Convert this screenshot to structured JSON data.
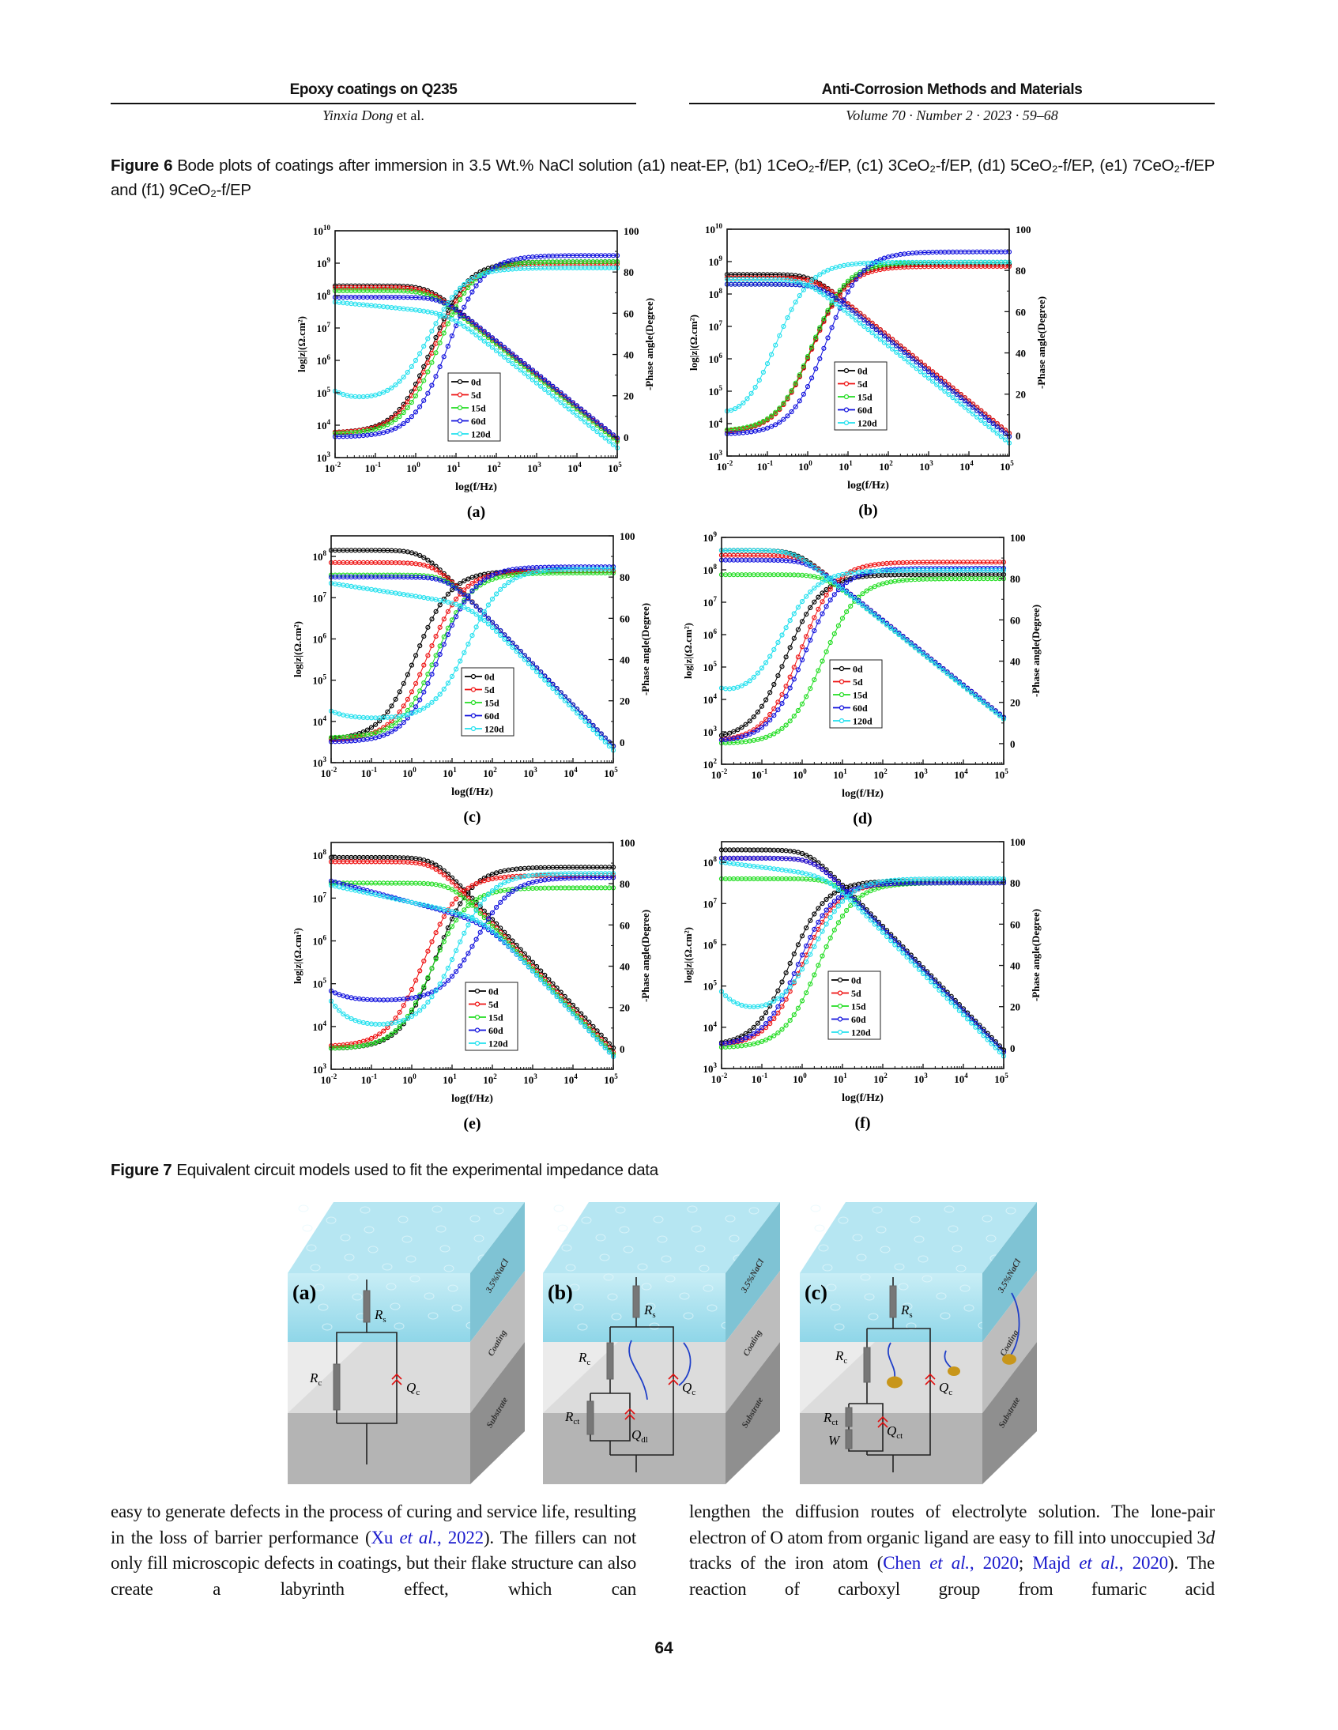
{
  "header": {
    "left_title": "Epoxy coatings on Q235",
    "left_author": "Yinxia Dong",
    "left_author_suffix": " et al.",
    "right_title": "Anti-Corrosion Methods and Materials",
    "right_sub": "Volume 70 · Number 2 · 2023 · 59–68"
  },
  "figure6": {
    "label": "Figure 6",
    "caption": "Bode plots of coatings after immersion in 3.5 Wt.% NaCl solution (a1) neat-EP, (b1) 1CeO₂-f/EP, (c1) 3CeO₂-f/EP, (d1) 5CeO₂-f/EP, (e1) 7CeO₂-f/EP and (f1) 9CeO₂-f/EP"
  },
  "chart_data": [
    {
      "panel": "(a)",
      "type": "line",
      "title": "",
      "xlabel": "log(f/Hz)",
      "ylabel": "log|z|(Ω.cm²)",
      "y2label": "-Phase angle(Degree)",
      "tick_base": "10",
      "x_log_range": [
        -2,
        5
      ],
      "y_log_range": [
        3,
        10
      ],
      "y2lim": [
        -10,
        100
      ],
      "x_ticks": [
        -2,
        -1,
        0,
        1,
        2,
        3,
        4,
        5
      ],
      "y_ticks": [
        3,
        4,
        5,
        6,
        7,
        8,
        9,
        10
      ],
      "y2_ticks": [
        0,
        20,
        40,
        60,
        80,
        100
      ],
      "legend": "center",
      "grid": false,
      "series": [
        {
          "name": "0d",
          "color": "#000000",
          "modulus": {
            "low_freq_log_z": 8.3,
            "low_freq_slope": 0,
            "log_z_at_1e5Hz": 3.6
          },
          "phase": {
            "at_0_01Hz": 2,
            "min": 2,
            "plateau": 85,
            "mid_log_f": 0.4
          }
        },
        {
          "name": "5d",
          "color": "#ee1111",
          "modulus": {
            "low_freq_log_z": 8.25,
            "low_freq_slope": 0,
            "log_z_at_1e5Hz": 3.55
          },
          "phase": {
            "at_0_01Hz": 2,
            "min": 2,
            "plateau": 84,
            "mid_log_f": 0.45
          }
        },
        {
          "name": "15d",
          "color": "#22dd22",
          "modulus": {
            "low_freq_log_z": 8.15,
            "low_freq_slope": 0,
            "log_z_at_1e5Hz": 3.5
          },
          "phase": {
            "at_0_01Hz": 1.5,
            "min": 1.5,
            "plateau": 85,
            "mid_log_f": 0.55
          }
        },
        {
          "name": "60d",
          "color": "#1010dd",
          "modulus": {
            "low_freq_log_z": 7.95,
            "low_freq_slope": 0,
            "log_z_at_1e5Hz": 3.6
          },
          "phase": {
            "at_0_01Hz": 0,
            "min": 0,
            "plateau": 88,
            "mid_log_f": 0.8
          }
        },
        {
          "name": "120d",
          "color": "#22e0ee",
          "modulus": {
            "low_freq_log_z": 7.8,
            "low_freq_slope": -0.12,
            "log_z_at_1e5Hz": 3.3
          },
          "phase": {
            "at_0_01Hz": 22,
            "min": 17,
            "plateau": 82,
            "mid_log_f": 0.35
          }
        }
      ]
    },
    {
      "panel": "(b)",
      "type": "line",
      "title": "",
      "xlabel": "log(f/Hz)",
      "ylabel": "log|z|(Ω.cm²)",
      "y2label": "-Phase angle(Degree)",
      "tick_base": "10",
      "x_log_range": [
        -2,
        5
      ],
      "y_log_range": [
        3,
        10
      ],
      "y2lim": [
        -10,
        100
      ],
      "x_ticks": [
        -2,
        -1,
        0,
        1,
        2,
        3,
        4,
        5
      ],
      "y_ticks": [
        3,
        4,
        5,
        6,
        7,
        8,
        9,
        10
      ],
      "y2_ticks": [
        0,
        20,
        40,
        60,
        80,
        100
      ],
      "legend": "center",
      "grid": false,
      "series": [
        {
          "name": "0d",
          "color": "#000000",
          "modulus": {
            "low_freq_log_z": 8.6,
            "low_freq_slope": 0,
            "log_z_at_1e5Hz": 3.7
          },
          "phase": {
            "at_0_01Hz": 1.5,
            "min": 1.5,
            "plateau": 83,
            "mid_log_f": 0.1
          }
        },
        {
          "name": "5d",
          "color": "#ee1111",
          "modulus": {
            "low_freq_log_z": 8.5,
            "low_freq_slope": 0,
            "log_z_at_1e5Hz": 3.7
          },
          "phase": {
            "at_0_01Hz": 1.5,
            "min": 1.5,
            "plateau": 82,
            "mid_log_f": 0.1
          }
        },
        {
          "name": "15d",
          "color": "#22dd22",
          "modulus": {
            "low_freq_log_z": 8.3,
            "low_freq_slope": 0,
            "log_z_at_1e5Hz": 3.6
          },
          "phase": {
            "at_0_01Hz": 2,
            "min": 2,
            "plateau": 84,
            "mid_log_f": 0.1
          }
        },
        {
          "name": "60d",
          "color": "#1010dd",
          "modulus": {
            "low_freq_log_z": 8.3,
            "low_freq_slope": 0,
            "log_z_at_1e5Hz": 3.6
          },
          "phase": {
            "at_0_01Hz": 0.5,
            "min": 0.5,
            "plateau": 89,
            "mid_log_f": 0.45
          }
        },
        {
          "name": "120d",
          "color": "#22e0ee",
          "modulus": {
            "low_freq_log_z": 8.45,
            "low_freq_slope": 0,
            "log_z_at_1e5Hz": 3.4
          },
          "phase": {
            "at_0_01Hz": 7,
            "min": 3,
            "plateau": 84,
            "mid_log_f": -0.8
          }
        }
      ]
    },
    {
      "panel": "(c)",
      "type": "line",
      "title": "",
      "xlabel": "log(f/Hz)",
      "ylabel": "log|z|(Ω.cm²)",
      "y2label": "-Phase angle(Degree)",
      "tick_base": "10",
      "x_log_range": [
        -2,
        5
      ],
      "y_log_range": [
        3,
        8.5
      ],
      "y2lim": [
        -10,
        100
      ],
      "x_ticks": [
        -2,
        -1,
        0,
        1,
        2,
        3,
        4,
        5
      ],
      "y_ticks": [
        3,
        4,
        5,
        6,
        7,
        8
      ],
      "y2_ticks": [
        0,
        20,
        40,
        60,
        80,
        100
      ],
      "legend": "center",
      "grid": false,
      "series": [
        {
          "name": "0d",
          "color": "#000000",
          "modulus": {
            "low_freq_log_z": 8.15,
            "low_freq_slope": 0,
            "log_z_at_1e5Hz": 3.4
          },
          "phase": {
            "at_0_01Hz": 1,
            "min": 1,
            "plateau": 83,
            "mid_log_f": 0.1
          }
        },
        {
          "name": "5d",
          "color": "#ee1111",
          "modulus": {
            "low_freq_log_z": 7.85,
            "low_freq_slope": 0,
            "log_z_at_1e5Hz": 3.4
          },
          "phase": {
            "at_0_01Hz": 1,
            "min": 1,
            "plateau": 83,
            "mid_log_f": 0.4
          }
        },
        {
          "name": "15d",
          "color": "#22dd22",
          "modulus": {
            "low_freq_log_z": 7.55,
            "low_freq_slope": 0,
            "log_z_at_1e5Hz": 3.4
          },
          "phase": {
            "at_0_01Hz": 2,
            "min": 2,
            "plateau": 82,
            "mid_log_f": 0.6
          }
        },
        {
          "name": "60d",
          "color": "#1010dd",
          "modulus": {
            "low_freq_log_z": 7.5,
            "low_freq_slope": 0,
            "log_z_at_1e5Hz": 3.4
          },
          "phase": {
            "at_0_01Hz": 0,
            "min": 0,
            "plateau": 85,
            "mid_log_f": 0.7
          }
        },
        {
          "name": "120d",
          "color": "#22e0ee",
          "modulus": {
            "low_freq_log_z": 7.35,
            "low_freq_slope": -0.15,
            "log_z_at_1e5Hz": 3.3
          },
          "phase": {
            "at_0_01Hz": 15,
            "min": 11,
            "plateau": 84,
            "mid_log_f": 1.4
          }
        }
      ]
    },
    {
      "panel": "(d)",
      "type": "line",
      "title": "",
      "xlabel": "log(f/Hz)",
      "ylabel": "log|z|(Ω.cm²)",
      "y2label": "-Phase angle(Degree)",
      "tick_base": "10",
      "x_log_range": [
        -2,
        5
      ],
      "y_log_range": [
        2,
        9
      ],
      "y2lim": [
        -10,
        100
      ],
      "x_ticks": [
        -2,
        -1,
        0,
        1,
        2,
        3,
        4,
        5
      ],
      "y_ticks": [
        2,
        3,
        4,
        5,
        6,
        7,
        8,
        9
      ],
      "y2_ticks": [
        0,
        20,
        40,
        60,
        80,
        100
      ],
      "legend": "center",
      "grid": false,
      "series": [
        {
          "name": "0d",
          "color": "#000000",
          "modulus": {
            "low_freq_log_z": 8.6,
            "low_freq_slope": 0,
            "log_z_at_1e5Hz": 3.45
          },
          "phase": {
            "at_0_01Hz": 2,
            "min": 2,
            "plateau": 82,
            "mid_log_f": -0.4
          }
        },
        {
          "name": "5d",
          "color": "#ee1111",
          "modulus": {
            "low_freq_log_z": 8.45,
            "low_freq_slope": 0,
            "log_z_at_1e5Hz": 3.45
          },
          "phase": {
            "at_0_01Hz": 1,
            "min": 1,
            "plateau": 88,
            "mid_log_f": -0.05
          }
        },
        {
          "name": "15d",
          "color": "#22dd22",
          "modulus": {
            "low_freq_log_z": 7.85,
            "low_freq_slope": 0,
            "log_z_at_1e5Hz": 3.4
          },
          "phase": {
            "at_0_01Hz": 0,
            "min": 0,
            "plateau": 80,
            "mid_log_f": 0.5
          }
        },
        {
          "name": "60d",
          "color": "#1010dd",
          "modulus": {
            "low_freq_log_z": 8.3,
            "low_freq_slope": 0,
            "log_z_at_1e5Hz": 3.45
          },
          "phase": {
            "at_0_01Hz": 1,
            "min": 1,
            "plateau": 85,
            "mid_log_f": 0.05
          }
        },
        {
          "name": "120d",
          "color": "#22e0ee",
          "modulus": {
            "low_freq_log_z": 8.6,
            "low_freq_slope": 0,
            "log_z_at_1e5Hz": 3.4
          },
          "phase": {
            "at_0_01Hz": 25,
            "min": 21,
            "plateau": 84,
            "mid_log_f": -0.5
          }
        }
      ]
    },
    {
      "panel": "(e)",
      "type": "line",
      "title": "",
      "xlabel": "log(f/Hz)",
      "ylabel": "log|z|(Ω.cm²)",
      "y2label": "-Phase angle(Degree)",
      "tick_base": "10",
      "x_log_range": [
        -2,
        5
      ],
      "y_log_range": [
        3,
        8.3
      ],
      "y2lim": [
        -10,
        100
      ],
      "x_ticks": [
        -2,
        -1,
        0,
        1,
        2,
        3,
        4,
        5
      ],
      "y_ticks": [
        3,
        4,
        5,
        6,
        7,
        8
      ],
      "y2_ticks": [
        0,
        20,
        40,
        60,
        80,
        100
      ],
      "legend": "center",
      "grid": false,
      "series": [
        {
          "name": "0d",
          "color": "#000000",
          "modulus": {
            "low_freq_log_z": 7.95,
            "low_freq_slope": 0,
            "log_z_at_1e5Hz": 3.5
          },
          "phase": {
            "at_0_01Hz": 0,
            "min": 0,
            "plateau": 88,
            "mid_log_f": 0.6
          }
        },
        {
          "name": "5d",
          "color": "#ee1111",
          "modulus": {
            "low_freq_log_z": 7.85,
            "low_freq_slope": 0,
            "log_z_at_1e5Hz": 3.4
          },
          "phase": {
            "at_0_01Hz": 1,
            "min": 1,
            "plateau": 84,
            "mid_log_f": 0.3
          }
        },
        {
          "name": "15d",
          "color": "#22dd22",
          "modulus": {
            "low_freq_log_z": 7.35,
            "low_freq_slope": 0,
            "log_z_at_1e5Hz": 3.35
          },
          "phase": {
            "at_0_01Hz": 0,
            "min": 0,
            "plateau": 78,
            "mid_log_f": 0.5
          }
        },
        {
          "name": "60d",
          "color": "#1010dd",
          "modulus": {
            "low_freq_log_z": 7.4,
            "low_freq_slope": -0.25,
            "log_z_at_1e5Hz": 3.3
          },
          "phase": {
            "at_0_01Hz": 28,
            "min": 23,
            "plateau": 83,
            "mid_log_f": 1.6
          }
        },
        {
          "name": "120d",
          "color": "#22e0ee",
          "modulus": {
            "low_freq_log_z": 7.3,
            "low_freq_slope": -0.2,
            "log_z_at_1e5Hz": 3.3
          },
          "phase": {
            "at_0_01Hz": 23,
            "min": 10,
            "plateau": 85,
            "mid_log_f": 1.1
          }
        }
      ]
    },
    {
      "panel": "(f)",
      "type": "line",
      "title": "",
      "xlabel": "log(f/Hz)",
      "ylabel": "log|z|(Ω.cm²)",
      "y2label": "-Phase angle(Degree)",
      "tick_base": "10",
      "x_log_range": [
        -2,
        5
      ],
      "y_log_range": [
        3,
        8.5
      ],
      "y2lim": [
        -10,
        100
      ],
      "x_ticks": [
        -2,
        -1,
        0,
        1,
        2,
        3,
        4,
        5
      ],
      "y_ticks": [
        3,
        4,
        5,
        6,
        7,
        8
      ],
      "y2_ticks": [
        0,
        20,
        40,
        60,
        80,
        100
      ],
      "legend": "center",
      "grid": false,
      "series": [
        {
          "name": "0d",
          "color": "#000000",
          "modulus": {
            "low_freq_log_z": 8.3,
            "low_freq_slope": 0,
            "log_z_at_1e5Hz": 3.45
          },
          "phase": {
            "at_0_01Hz": 1,
            "min": 1,
            "plateau": 81,
            "mid_log_f": -0.3
          }
        },
        {
          "name": "5d",
          "color": "#ee1111",
          "modulus": {
            "low_freq_log_z": 8.1,
            "low_freq_slope": 0,
            "log_z_at_1e5Hz": 3.4
          },
          "phase": {
            "at_0_01Hz": 1,
            "min": 1,
            "plateau": 80,
            "mid_log_f": 0.0
          }
        },
        {
          "name": "15d",
          "color": "#22dd22",
          "modulus": {
            "low_freq_log_z": 7.6,
            "low_freq_slope": 0,
            "log_z_at_1e5Hz": 3.4
          },
          "phase": {
            "at_0_01Hz": 0,
            "min": 0,
            "plateau": 80,
            "mid_log_f": 0.4
          }
        },
        {
          "name": "60d",
          "color": "#1010dd",
          "modulus": {
            "low_freq_log_z": 8.1,
            "low_freq_slope": 0,
            "log_z_at_1e5Hz": 3.4
          },
          "phase": {
            "at_0_01Hz": 1,
            "min": 1,
            "plateau": 80,
            "mid_log_f": -0.1
          }
        },
        {
          "name": "120d",
          "color": "#22e0ee",
          "modulus": {
            "low_freq_log_z": 8.0,
            "low_freq_slope": -0.12,
            "log_z_at_1e5Hz": 3.3
          },
          "phase": {
            "at_0_01Hz": 27,
            "min": 16,
            "plateau": 82,
            "mid_log_f": 0.3
          }
        }
      ]
    }
  ],
  "figure7": {
    "label": "Figure 7",
    "caption": "Equivalent circuit models used to fit the experimental impedance data",
    "layers": {
      "solution": "3.5%NaCl",
      "coating": "Coating",
      "substrate": "Substrate"
    },
    "panels": [
      {
        "label": "(a)",
        "elements": [
          {
            "main": "R",
            "sub": "s"
          },
          {
            "main": "R",
            "sub": "c"
          },
          {
            "main": "Q",
            "sub": "c"
          }
        ]
      },
      {
        "label": "(b)",
        "elements": [
          {
            "main": "R",
            "sub": "s"
          },
          {
            "main": "R",
            "sub": "c"
          },
          {
            "main": "Q",
            "sub": "c"
          },
          {
            "main": "R",
            "sub": "ct"
          },
          {
            "main": "Q",
            "sub": "dl"
          }
        ]
      },
      {
        "label": "(c)",
        "elements": [
          {
            "main": "R",
            "sub": "s"
          },
          {
            "main": "R",
            "sub": "c"
          },
          {
            "main": "Q",
            "sub": "c"
          },
          {
            "main": "R",
            "sub": "ct"
          },
          {
            "main": "Q",
            "sub": "ct"
          },
          {
            "main": "W",
            "sub": ""
          }
        ]
      }
    ]
  },
  "body": {
    "left": {
      "t1": "easy to generate defects in the process of curing and service life, resulting in the loss of barrier performance (",
      "ref1": {
        "pre": "Xu ",
        "it": "et al.",
        "post": ", 2022"
      },
      "t2": "). The fillers can not only fill microscopic defects in coatings, but their flake structure can also create a labyrinth effect, which can"
    },
    "right": {
      "t1": "lengthen the diffusion routes of electrolyte solution. The lone-pair electron of O atom from organic ligand are easy to fill into unoccupied 3",
      "t1_it": "d",
      "t2": " tracks of the iron atom (",
      "ref1": {
        "pre": "Chen ",
        "it": "et al.",
        "post": ", 2020"
      },
      "sep": "; ",
      "ref2": {
        "pre": "Majd ",
        "it": "et al.",
        "post": ", 2020"
      },
      "t3": "). The reaction of carboxyl group from fumaric acid"
    }
  },
  "page_number": "64"
}
